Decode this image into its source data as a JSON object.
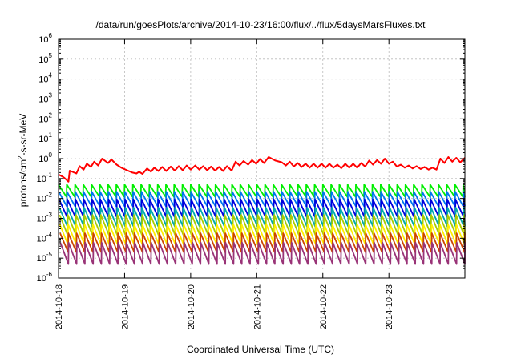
{
  "chart_data": {
    "type": "line",
    "title": "/data/run/goesPlots/archive/2014-10-23/16:00/flux/../flux/5daysMarsFluxes.txt",
    "xlabel": "Coordinated Universal Time (UTC)",
    "ylabel_base": "protons/cm",
    "ylabel_sup": "2",
    "ylabel_rest": "-s-sr-MeV",
    "yscale": "log",
    "ylim_exponents": [
      -6,
      6
    ],
    "y_tick_exponents": [
      -6,
      -5,
      -4,
      -3,
      -2,
      -1,
      0,
      1,
      2,
      3,
      4,
      5,
      6
    ],
    "y_tick_base": "10",
    "x_tick_labels": [
      "2014-10-18",
      "2014-10-19",
      "2014-10-20",
      "2014-10-21",
      "2014-10-22",
      "2014-10-23"
    ],
    "xlim_days": [
      0,
      6.15
    ],
    "grid": true,
    "legend": "none",
    "series": [
      {
        "color": "#ff0000",
        "points": [
          [
            0.0,
            0.16
          ],
          [
            0.07,
            0.12
          ],
          [
            0.1,
            0.1
          ],
          [
            0.13,
            0.08
          ],
          [
            0.15,
            0.07
          ],
          [
            0.17,
            0.25
          ],
          [
            0.27,
            0.18
          ],
          [
            0.32,
            0.42
          ],
          [
            0.38,
            0.28
          ],
          [
            0.43,
            0.55
          ],
          [
            0.49,
            0.38
          ],
          [
            0.54,
            0.7
          ],
          [
            0.6,
            0.45
          ],
          [
            0.66,
            1.0
          ],
          [
            0.75,
            0.6
          ],
          [
            0.8,
            0.9
          ],
          [
            0.88,
            0.5
          ],
          [
            0.95,
            0.35
          ],
          [
            1.05,
            0.25
          ],
          [
            1.12,
            0.2
          ],
          [
            1.18,
            0.18
          ],
          [
            1.22,
            0.22
          ],
          [
            1.27,
            0.17
          ],
          [
            1.34,
            0.32
          ],
          [
            1.4,
            0.22
          ],
          [
            1.45,
            0.35
          ],
          [
            1.51,
            0.24
          ],
          [
            1.57,
            0.38
          ],
          [
            1.63,
            0.24
          ],
          [
            1.7,
            0.4
          ],
          [
            1.76,
            0.25
          ],
          [
            1.82,
            0.42
          ],
          [
            1.88,
            0.26
          ],
          [
            1.94,
            0.45
          ],
          [
            2.0,
            0.28
          ],
          [
            2.07,
            0.45
          ],
          [
            2.13,
            0.28
          ],
          [
            2.19,
            0.42
          ],
          [
            2.25,
            0.26
          ],
          [
            2.31,
            0.4
          ],
          [
            2.37,
            0.25
          ],
          [
            2.43,
            0.38
          ],
          [
            2.49,
            0.24
          ],
          [
            2.55,
            0.42
          ],
          [
            2.62,
            0.25
          ],
          [
            2.68,
            0.7
          ],
          [
            2.74,
            0.45
          ],
          [
            2.8,
            0.75
          ],
          [
            2.87,
            0.5
          ],
          [
            2.93,
            0.85
          ],
          [
            2.99,
            0.55
          ],
          [
            3.05,
            0.95
          ],
          [
            3.11,
            0.6
          ],
          [
            3.18,
            1.2
          ],
          [
            3.28,
            0.8
          ],
          [
            3.38,
            0.65
          ],
          [
            3.44,
            0.45
          ],
          [
            3.5,
            0.7
          ],
          [
            3.56,
            0.4
          ],
          [
            3.62,
            0.6
          ],
          [
            3.68,
            0.38
          ],
          [
            3.74,
            0.55
          ],
          [
            3.8,
            0.35
          ],
          [
            3.86,
            0.55
          ],
          [
            3.92,
            0.35
          ],
          [
            3.98,
            0.55
          ],
          [
            4.04,
            0.35
          ],
          [
            4.1,
            0.55
          ],
          [
            4.16,
            0.35
          ],
          [
            4.22,
            0.5
          ],
          [
            4.28,
            0.33
          ],
          [
            4.34,
            0.55
          ],
          [
            4.4,
            0.35
          ],
          [
            4.46,
            0.55
          ],
          [
            4.52,
            0.35
          ],
          [
            4.58,
            0.6
          ],
          [
            4.64,
            0.4
          ],
          [
            4.7,
            0.8
          ],
          [
            4.76,
            0.5
          ],
          [
            4.82,
            0.85
          ],
          [
            4.88,
            0.55
          ],
          [
            4.94,
            1.0
          ],
          [
            5.0,
            0.55
          ],
          [
            5.06,
            0.7
          ],
          [
            5.12,
            0.4
          ],
          [
            5.18,
            0.5
          ],
          [
            5.24,
            0.35
          ],
          [
            5.3,
            0.45
          ],
          [
            5.36,
            0.32
          ],
          [
            5.42,
            0.42
          ],
          [
            5.48,
            0.3
          ],
          [
            5.54,
            0.38
          ],
          [
            5.6,
            0.28
          ],
          [
            5.66,
            0.35
          ],
          [
            5.72,
            0.28
          ],
          [
            5.78,
            1.0
          ],
          [
            5.84,
            0.6
          ],
          [
            5.9,
            1.2
          ],
          [
            5.96,
            0.7
          ],
          [
            6.02,
            1.1
          ],
          [
            6.08,
            0.65
          ],
          [
            6.15,
            1.1
          ]
        ]
      }
    ],
    "sawtooth_series": [
      {
        "color": "#00ee00",
        "low": 0.012,
        "high": 0.05
      },
      {
        "color": "#0077ee",
        "low": 0.004,
        "high": 0.022
      },
      {
        "color": "#0000dd",
        "low": 0.0012,
        "high": 0.009
      },
      {
        "color": "#00aaaa",
        "low": 0.0004,
        "high": 0.0035
      },
      {
        "color": "#aacc00",
        "low": 0.00015,
        "high": 0.0015
      },
      {
        "color": "#ffee00",
        "low": 5e-05,
        "high": 0.0005
      },
      {
        "color": "#cc4400",
        "low": 2e-05,
        "high": 0.00018
      },
      {
        "color": "#993377",
        "low": 5e-06,
        "high": 6e-05
      }
    ],
    "sawtooth_period_days": 0.125
  }
}
